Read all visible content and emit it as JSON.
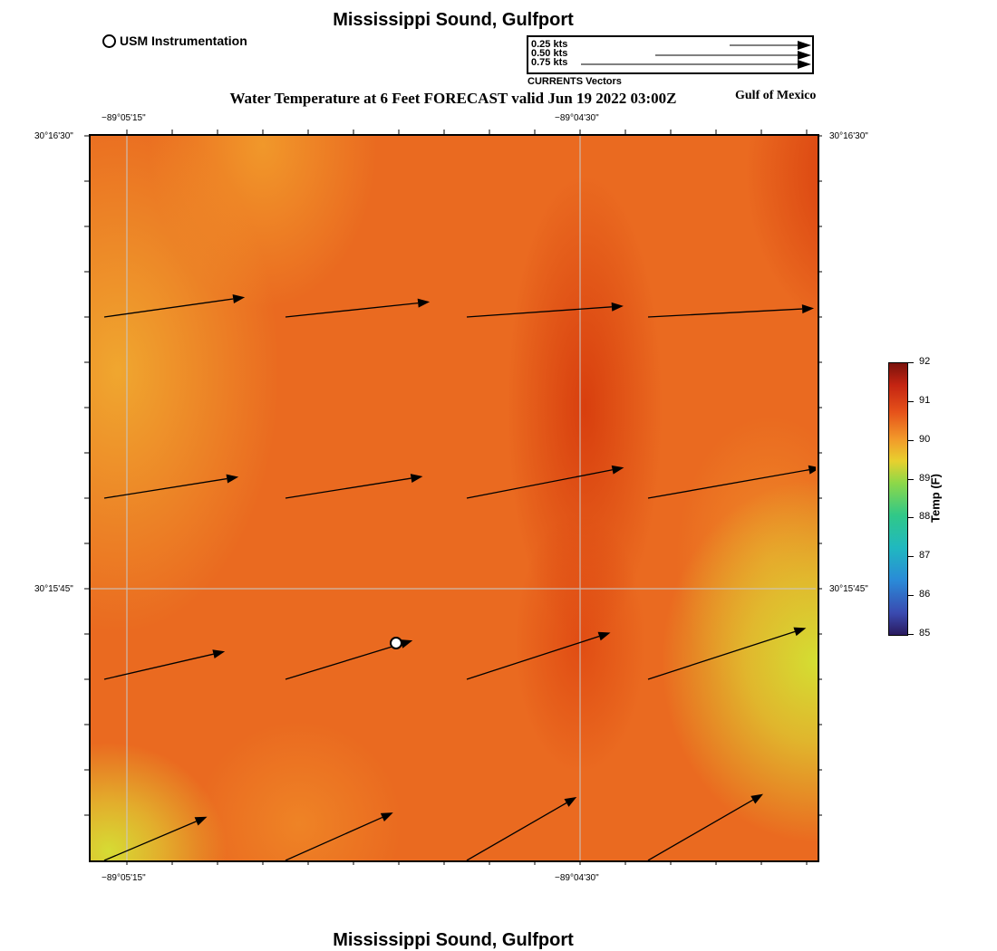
{
  "title": "Mississippi Sound, Gulfport",
  "footer_title": "Mississippi Sound, Gulfport",
  "subtitle": "Water Temperature at 6 Feet FORECAST valid Jun 19 2022 03:00Z",
  "region_label": "Gulf of Mexico",
  "station_legend": {
    "label": "USM Instrumentation",
    "icon": "circle-marker-icon"
  },
  "vector_legend": {
    "caption": "CURRENTS Vectors",
    "entries": [
      {
        "label": "0.25 kts",
        "speed_kts": 0.25
      },
      {
        "label": "0.50 kts",
        "speed_kts": 0.5
      },
      {
        "label": "0.75 kts",
        "speed_kts": 0.75
      }
    ]
  },
  "axes": {
    "x_ticks_top": [
      "−89°05'15\"",
      "−89°04'30\""
    ],
    "x_ticks_bottom": [
      "−89°05'15\"",
      "−89°04'30\""
    ],
    "y_ticks_left": [
      "30°16'30\"",
      "30°15'45\""
    ],
    "y_ticks_right": [
      "30°16'30\"",
      "30°15'45\""
    ],
    "grid": true
  },
  "colorbar": {
    "title": "Temp (F)",
    "ticks": [
      "92",
      "91",
      "90",
      "89",
      "88",
      "87",
      "86",
      "85"
    ],
    "range": [
      85,
      92
    ]
  },
  "current_vectors": [
    [
      {
        "speed_kts": 0.47,
        "angle_deg": 8
      },
      {
        "speed_kts": 0.48,
        "angle_deg": 6
      },
      {
        "speed_kts": 0.52,
        "angle_deg": 4
      },
      {
        "speed_kts": 0.55,
        "angle_deg": 3
      }
    ],
    [
      {
        "speed_kts": 0.45,
        "angle_deg": 9
      },
      {
        "speed_kts": 0.46,
        "angle_deg": 9
      },
      {
        "speed_kts": 0.53,
        "angle_deg": 11
      },
      {
        "speed_kts": 0.58,
        "angle_deg": 10
      }
    ],
    [
      {
        "speed_kts": 0.41,
        "angle_deg": 13
      },
      {
        "speed_kts": 0.44,
        "angle_deg": 17
      },
      {
        "speed_kts": 0.5,
        "angle_deg": 18
      },
      {
        "speed_kts": 0.55,
        "angle_deg": 18
      }
    ],
    [
      {
        "speed_kts": 0.37,
        "angle_deg": 23
      },
      {
        "speed_kts": 0.39,
        "angle_deg": 24
      },
      {
        "speed_kts": 0.42,
        "angle_deg": 30
      },
      {
        "speed_kts": 0.44,
        "angle_deg": 30
      }
    ]
  ]
}
